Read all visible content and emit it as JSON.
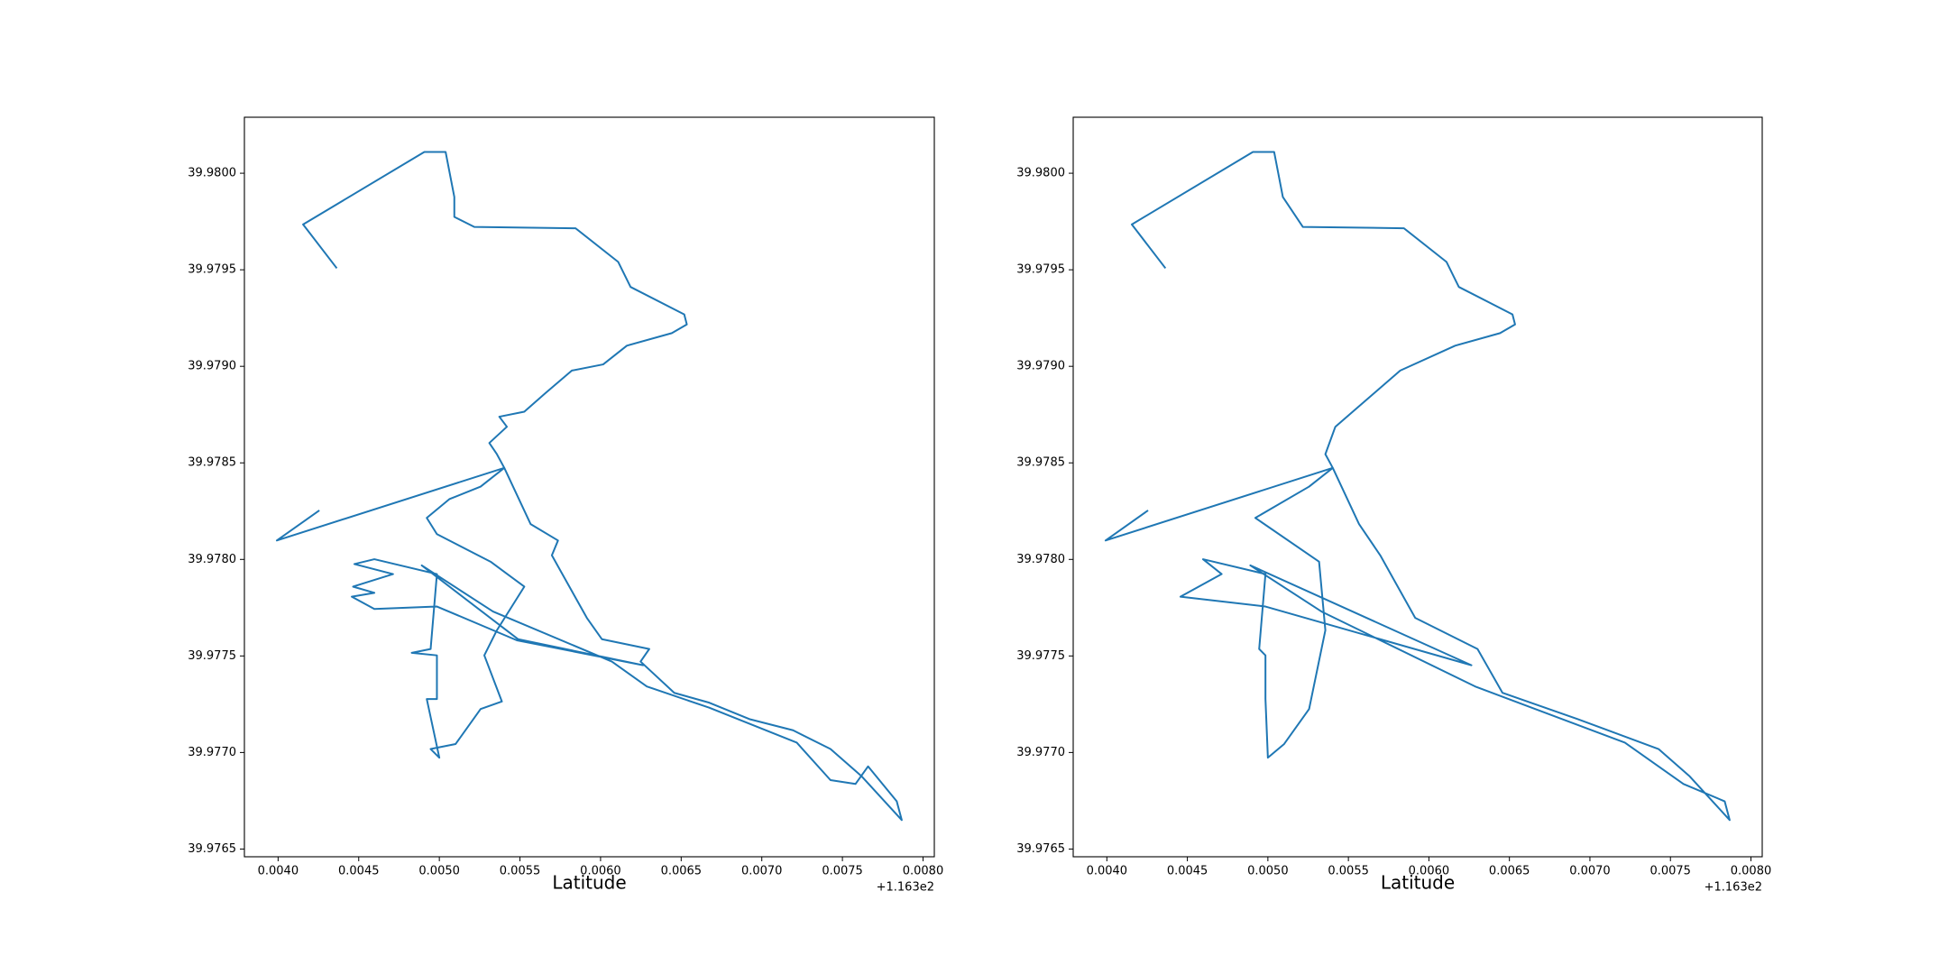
{
  "chart_data": [
    {
      "type": "line",
      "x_label": "Latitude",
      "offset_text": "+1.163e2",
      "color": "#1f77b4",
      "grid": false,
      "xlim": [
        116.303791,
        116.30807
      ],
      "ylim": [
        39.97646,
        39.98029
      ],
      "xticks": [
        {
          "value": 116.304,
          "label": "0.0040"
        },
        {
          "value": 116.3045,
          "label": "0.0045"
        },
        {
          "value": 116.305,
          "label": "0.0050"
        },
        {
          "value": 116.3055,
          "label": "0.0055"
        },
        {
          "value": 116.306,
          "label": "0.0060"
        },
        {
          "value": 116.3065,
          "label": "0.0065"
        },
        {
          "value": 116.307,
          "label": "0.0070"
        },
        {
          "value": 116.3075,
          "label": "0.0075"
        },
        {
          "value": 116.308,
          "label": "0.0080"
        }
      ],
      "yticks": [
        {
          "value": 39.9765,
          "label": "39.9765"
        },
        {
          "value": 39.977,
          "label": "39.9770"
        },
        {
          "value": 39.9775,
          "label": "39.9775"
        },
        {
          "value": 39.978,
          "label": "39.9780"
        },
        {
          "value": 39.9785,
          "label": "39.9785"
        },
        {
          "value": 39.979,
          "label": "39.9790"
        },
        {
          "value": 39.9795,
          "label": "39.9795"
        },
        {
          "value": 39.98,
          "label": "39.9800"
        }
      ],
      "x": [
        116.304364,
        116.304155,
        116.304907,
        116.305039,
        116.305093,
        116.305093,
        116.305217,
        116.305845,
        116.306109,
        116.306186,
        116.306519,
        116.306535,
        116.306442,
        116.306163,
        116.306016,
        116.305822,
        116.305659,
        116.305527,
        116.305372,
        116.305419,
        116.30531,
        116.305357,
        116.305403,
        116.305566,
        116.305736,
        116.305698,
        116.305915,
        116.306008,
        116.306302,
        116.306248,
        116.306457,
        116.306674,
        116.306923,
        116.307194,
        116.307426,
        116.30762,
        116.307868,
        116.307837,
        116.307659,
        116.307581,
        116.307426,
        116.307217,
        116.306674,
        116.306287,
        116.30607,
        116.305333,
        116.304891,
        116.305488,
        116.306264,
        116.305481,
        116.304985,
        116.304597,
        116.304457,
        116.304597,
        116.304465,
        116.304713,
        116.304473,
        116.304597,
        116.304985,
        116.304946,
        116.304829,
        116.304985,
        116.304985,
        116.304922,
        116.305,
        116.304946,
        116.305101,
        116.305256,
        116.305388,
        116.305279,
        116.305357,
        116.305527,
        116.305318,
        116.304985,
        116.304922,
        116.305062,
        116.305256,
        116.305403,
        116.303992,
        116.304256
      ],
      "y": [
        39.979508,
        39.979735,
        39.98011,
        39.98011,
        39.979877,
        39.979774,
        39.979722,
        39.979715,
        39.979541,
        39.979411,
        39.979269,
        39.979217,
        39.979172,
        39.979107,
        39.97901,
        39.978978,
        39.978862,
        39.978765,
        39.978739,
        39.978687,
        39.978603,
        39.978545,
        39.978474,
        39.978183,
        39.978098,
        39.978021,
        39.977697,
        39.977587,
        39.977536,
        39.977471,
        39.977309,
        39.977258,
        39.977173,
        39.977115,
        39.977018,
        39.976876,
        39.97665,
        39.976747,
        39.976928,
        39.976837,
        39.976857,
        39.977051,
        39.977232,
        39.977342,
        39.977471,
        39.97773,
        39.977969,
        39.977587,
        39.977452,
        39.977581,
        39.977756,
        39.977743,
        39.977807,
        39.977827,
        39.977859,
        39.977924,
        39.977976,
        39.978001,
        39.977924,
        39.977536,
        39.977516,
        39.977503,
        39.977277,
        39.977277,
        39.976973,
        39.977018,
        39.977044,
        39.977225,
        39.977264,
        39.977503,
        39.977633,
        39.977859,
        39.977988,
        39.978131,
        39.978215,
        39.978312,
        39.978377,
        39.978474,
        39.978098,
        39.978254
      ]
    },
    {
      "type": "line",
      "x_label": "Latitude",
      "offset_text": "+1.163e2",
      "color": "#1f77b4",
      "grid": false,
      "xlim": [
        116.303791,
        116.30807
      ],
      "ylim": [
        39.97646,
        39.98029
      ],
      "xticks": [
        {
          "value": 116.304,
          "label": "0.0040"
        },
        {
          "value": 116.3045,
          "label": "0.0045"
        },
        {
          "value": 116.305,
          "label": "0.0050"
        },
        {
          "value": 116.3055,
          "label": "0.0055"
        },
        {
          "value": 116.306,
          "label": "0.0060"
        },
        {
          "value": 116.3065,
          "label": "0.0065"
        },
        {
          "value": 116.307,
          "label": "0.0070"
        },
        {
          "value": 116.3075,
          "label": "0.0075"
        },
        {
          "value": 116.308,
          "label": "0.0080"
        }
      ],
      "yticks": [
        {
          "value": 39.9765,
          "label": "39.9765"
        },
        {
          "value": 39.977,
          "label": "39.9770"
        },
        {
          "value": 39.9775,
          "label": "39.9775"
        },
        {
          "value": 39.978,
          "label": "39.9780"
        },
        {
          "value": 39.9785,
          "label": "39.9785"
        },
        {
          "value": 39.979,
          "label": "39.9790"
        },
        {
          "value": 39.9795,
          "label": "39.9795"
        },
        {
          "value": 39.98,
          "label": "39.9800"
        }
      ],
      "x": [
        116.304364,
        116.304155,
        116.304907,
        116.305039,
        116.305093,
        116.305217,
        116.305845,
        116.306109,
        116.306186,
        116.306519,
        116.306535,
        116.306442,
        116.306163,
        116.305822,
        116.305527,
        116.305419,
        116.305357,
        116.305403,
        116.305566,
        116.305698,
        116.305915,
        116.306302,
        116.306457,
        116.306923,
        116.307426,
        116.30762,
        116.307868,
        116.307837,
        116.307581,
        116.307217,
        116.306287,
        116.305333,
        116.304891,
        116.306264,
        116.304985,
        116.304457,
        116.304713,
        116.304597,
        116.304985,
        116.304946,
        116.304985,
        116.304985,
        116.305,
        116.305101,
        116.305256,
        116.305357,
        116.305318,
        116.304922,
        116.305256,
        116.305403,
        116.303992,
        116.304256
      ],
      "y": [
        39.979508,
        39.979735,
        39.98011,
        39.98011,
        39.979877,
        39.979722,
        39.979715,
        39.979541,
        39.979411,
        39.979269,
        39.979217,
        39.979172,
        39.979107,
        39.978978,
        39.978765,
        39.978687,
        39.978545,
        39.978474,
        39.978183,
        39.978021,
        39.977697,
        39.977536,
        39.977309,
        39.977173,
        39.977018,
        39.976876,
        39.97665,
        39.976747,
        39.976837,
        39.977051,
        39.977342,
        39.97773,
        39.977969,
        39.977452,
        39.977756,
        39.977807,
        39.977924,
        39.978001,
        39.977924,
        39.977536,
        39.977503,
        39.977277,
        39.976973,
        39.977044,
        39.977225,
        39.977633,
        39.977988,
        39.978215,
        39.978377,
        39.978474,
        39.978098,
        39.978254
      ]
    }
  ]
}
